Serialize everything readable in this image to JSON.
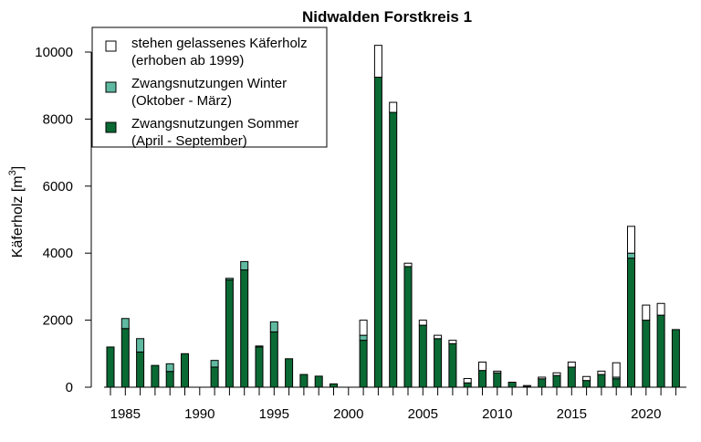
{
  "chart_data": {
    "type": "bar",
    "stacked": true,
    "title": "Nidwalden Forstkreis 1",
    "ylabel": "Käferholz [m",
    "ylabel_superscript": "3",
    "ylabel_close": "]",
    "xlabel": "",
    "ylim": [
      0,
      10500
    ],
    "y_ticks": [
      0,
      2000,
      4000,
      6000,
      8000,
      10000
    ],
    "x_tick_labels": [
      "1985",
      "1990",
      "1995",
      "2000",
      "2005",
      "2010",
      "2015",
      "2020"
    ],
    "grid": false,
    "legend_position": "top-left",
    "categories": [
      1984,
      1985,
      1986,
      1987,
      1988,
      1989,
      1990,
      1991,
      1992,
      1993,
      1994,
      1995,
      1996,
      1997,
      1998,
      1999,
      2000,
      2001,
      2002,
      2003,
      2004,
      2005,
      2006,
      2007,
      2008,
      2009,
      2010,
      2011,
      2012,
      2013,
      2014,
      2015,
      2016,
      2017,
      2018,
      2019,
      2020,
      2021,
      2022
    ],
    "series": [
      {
        "name": "Zwangsnutzungen Sommer",
        "name_line2": "(April - September)",
        "color": "#0a6a34",
        "values": [
          1200,
          1750,
          1050,
          650,
          470,
          1000,
          0,
          600,
          3200,
          3500,
          1200,
          1650,
          850,
          380,
          330,
          100,
          0,
          1400,
          9250,
          8200,
          3600,
          1850,
          1450,
          1300,
          130,
          500,
          430,
          150,
          20,
          250,
          350,
          600,
          200,
          380,
          250,
          3850,
          2000,
          2150,
          1720
        ]
      },
      {
        "name": "Zwangsnutzungen Winter",
        "name_line2": "(Oktober - März)",
        "color": "#5fb9a0",
        "values": [
          0,
          300,
          400,
          0,
          230,
          0,
          0,
          200,
          50,
          250,
          30,
          300,
          0,
          0,
          0,
          0,
          0,
          150,
          0,
          0,
          0,
          0,
          0,
          0,
          0,
          0,
          0,
          0,
          0,
          0,
          0,
          0,
          0,
          0,
          50,
          150,
          0,
          0,
          0
        ]
      },
      {
        "name": "stehen gelassenes Käferholz",
        "name_line2": "(erhoben ab 1999)",
        "color": "#ffffff",
        "values": [
          0,
          0,
          0,
          0,
          0,
          0,
          0,
          0,
          0,
          0,
          0,
          0,
          0,
          0,
          0,
          0,
          0,
          450,
          950,
          300,
          100,
          150,
          100,
          100,
          130,
          250,
          50,
          0,
          30,
          50,
          80,
          150,
          120,
          100,
          430,
          800,
          450,
          350,
          0
        ]
      }
    ]
  }
}
